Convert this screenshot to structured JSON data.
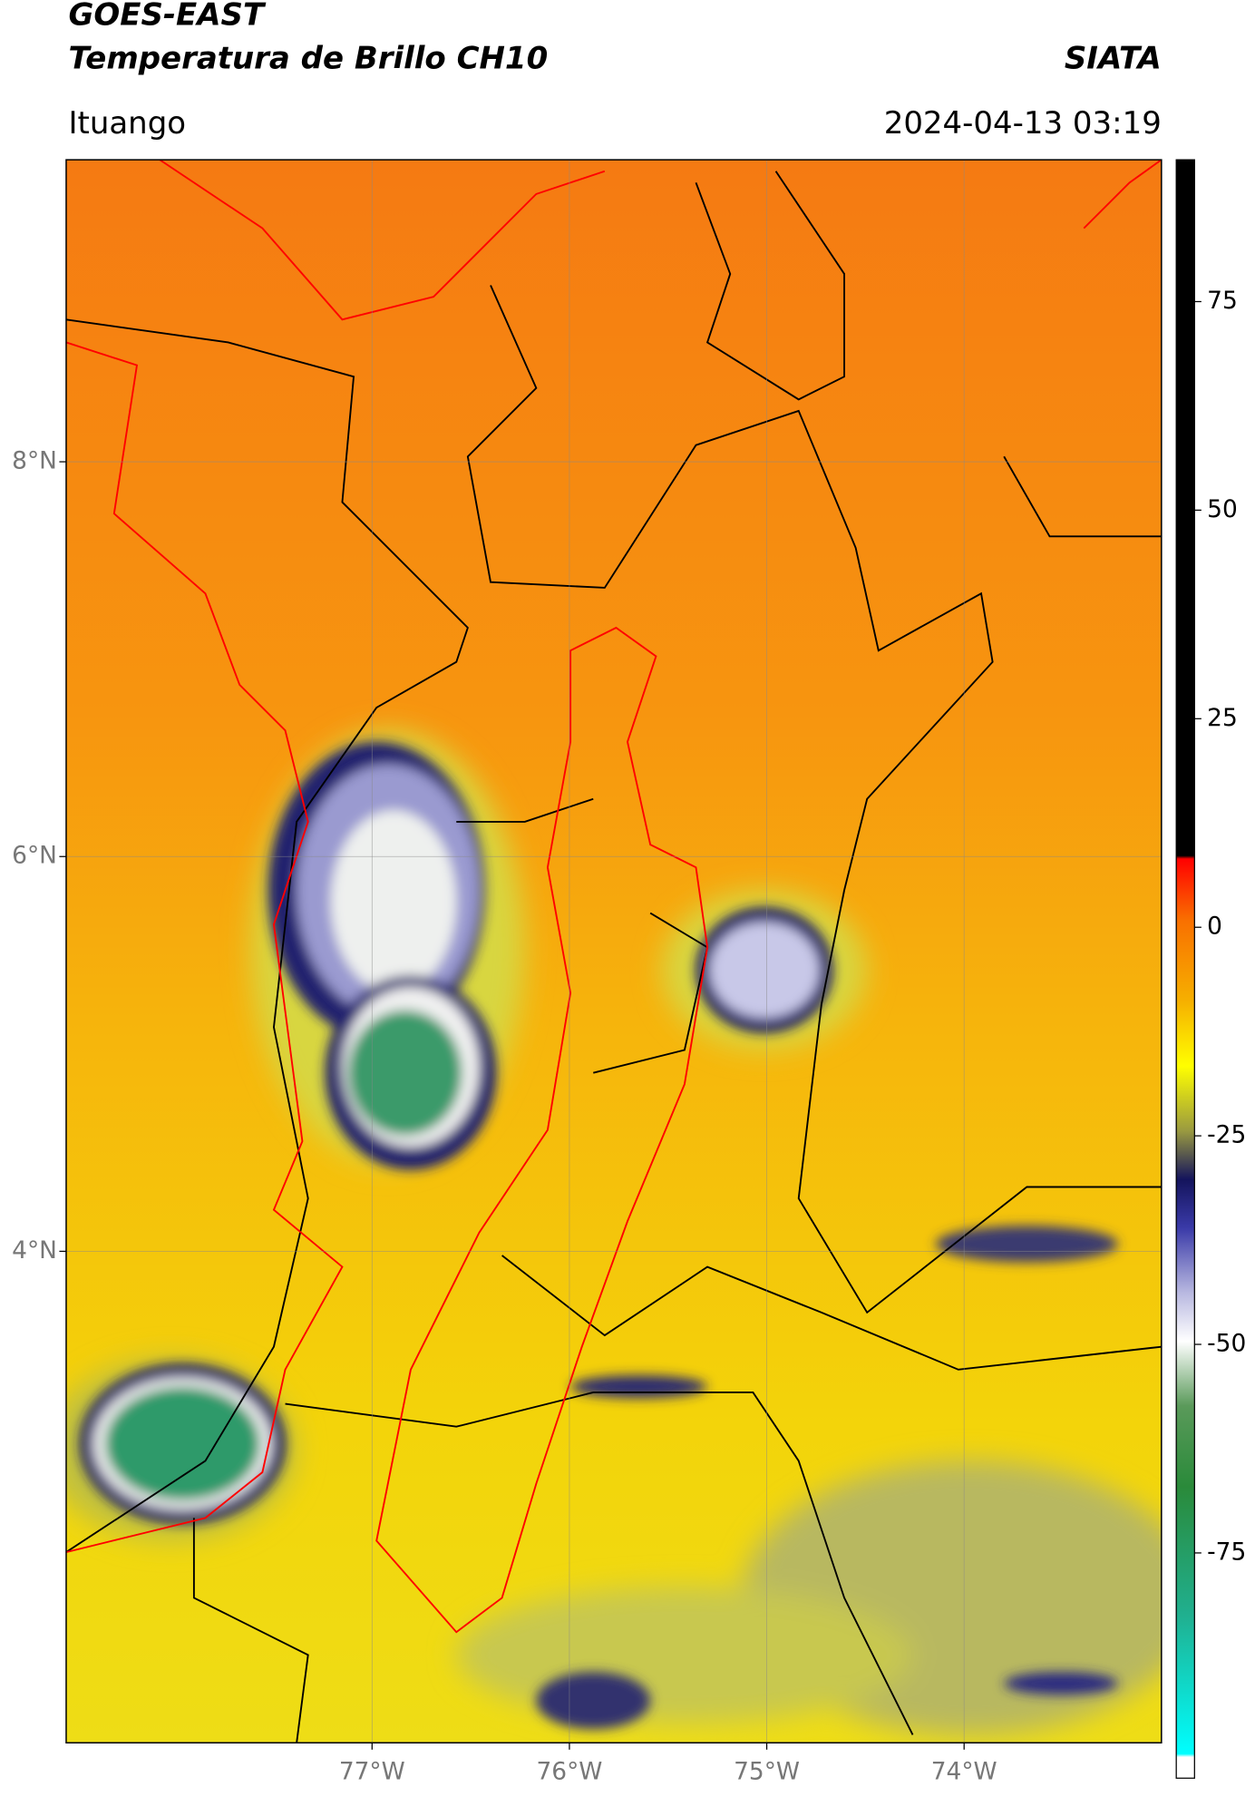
{
  "header": {
    "title": "GOES-EAST",
    "subtitle": "Temperatura de Brillo CH10",
    "organization": "SIATA",
    "location": "Ituango",
    "datetime": "2024-04-13 03:19"
  },
  "map": {
    "xlim": [
      -78.55,
      -73.0
    ],
    "ylim": [
      1.51,
      9.53
    ],
    "xticks": [
      {
        "value": -77,
        "label": "77°W"
      },
      {
        "value": -76,
        "label": "76°W"
      },
      {
        "value": -75,
        "label": "75°W"
      },
      {
        "value": -74,
        "label": "74°W"
      }
    ],
    "yticks": [
      {
        "value": 8,
        "label": "8°N"
      },
      {
        "value": 6,
        "label": "6°N"
      },
      {
        "value": 4,
        "label": "4°N"
      }
    ],
    "grid": true
  },
  "colorbar": {
    "lim": [
      -102,
      92
    ],
    "ticks": [
      75,
      50,
      25,
      0,
      -25,
      -50,
      -75
    ]
  }
}
